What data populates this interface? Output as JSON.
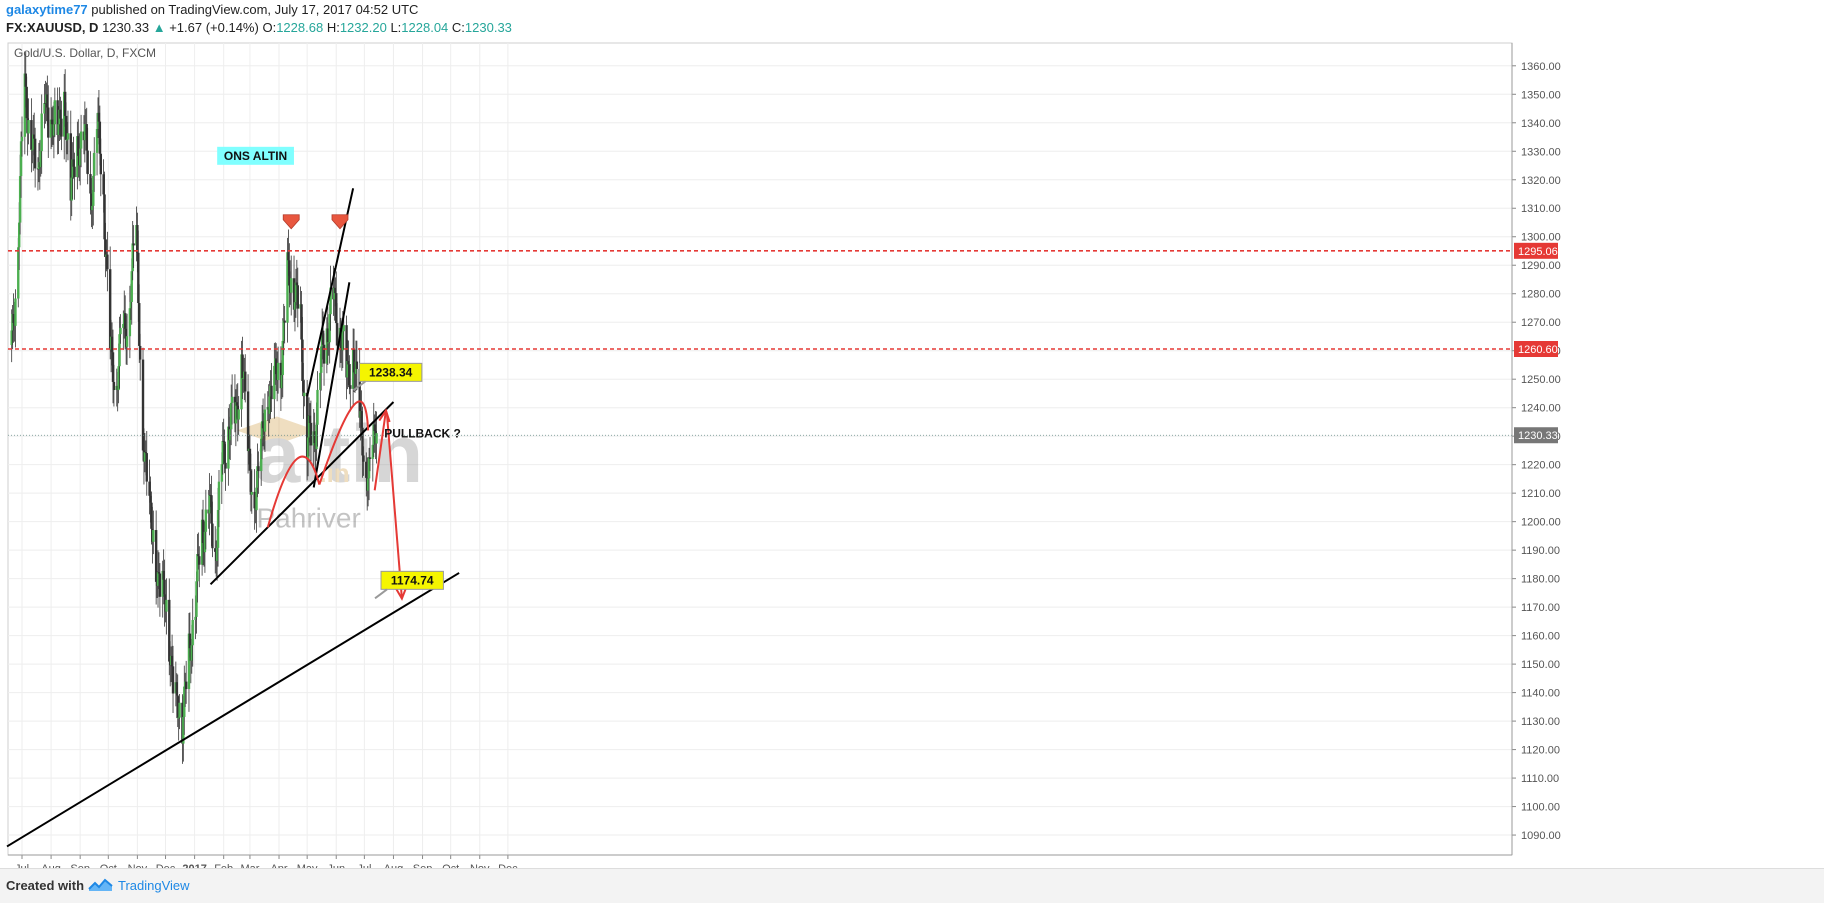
{
  "header": {
    "author": "galaxytime77",
    "published_text": "published on TradingView.com, July 17, 2017 04:52 UTC",
    "symbol": "FX:XAUUSD, D",
    "last": "1230.33",
    "change_arrow": "▲",
    "change": "+1.67 (+0.14%)",
    "o_label": "O:",
    "o_value": "1228.68",
    "h_label": "H:",
    "h_value": "1232.20",
    "l_label": "L:",
    "l_value": "1228.04",
    "c_label": "C:",
    "c_value": "1230.33"
  },
  "footer": {
    "created_with": "Created with",
    "brand": "TradingView",
    "brand_icon": "tradingview-logo-icon"
  },
  "colors": {
    "up": "#26a69a",
    "down": "#ef5350",
    "candle_up_body": "#4caf50",
    "candle_down_body": "#333333",
    "resistance": "#e53935",
    "trend": "#000000",
    "arrow": "#e53935",
    "label_yellow": "#f5f500",
    "label_cyan": "#80ffff"
  },
  "chart_data": {
    "type": "candlestick",
    "title": "Gold/U.S. Dollar, D, FXCM",
    "ylim": [
      1083,
      1368
    ],
    "y_ticks": [
      1090,
      1100,
      1110,
      1120,
      1130,
      1140,
      1150,
      1160,
      1170,
      1180,
      1190,
      1200,
      1210,
      1220,
      1230,
      1240,
      1250,
      1260,
      1270,
      1280,
      1290,
      1300,
      1310,
      1320,
      1330,
      1340,
      1350,
      1360
    ],
    "x_tick_labels": [
      "Jul",
      "Aug",
      "Sep",
      "Oct",
      "Nov",
      "Dec",
      "2017",
      "Feb",
      "Mar",
      "Apr",
      "May",
      "Jun",
      "Jul",
      "Aug",
      "Sep",
      "Oct",
      "Nov",
      "Dec"
    ],
    "price_labels": [
      {
        "value": 1295.06,
        "text": "1295.06",
        "color": "#e53935"
      },
      {
        "value": 1260.6,
        "text": "1260.60",
        "color": "#e53935"
      },
      {
        "value": 1230.33,
        "text": "1230.33",
        "color": "#777777"
      }
    ],
    "horizontal_levels": [
      1295.06,
      1260.6
    ],
    "close_series": [
      {
        "date": "2016-06-20",
        "close": 1262
      },
      {
        "date": "2016-06-27",
        "close": 1300
      },
      {
        "date": "2016-07-04",
        "close": 1355
      },
      {
        "date": "2016-07-11",
        "close": 1332
      },
      {
        "date": "2016-07-18",
        "close": 1322
      },
      {
        "date": "2016-07-25",
        "close": 1350
      },
      {
        "date": "2016-08-01",
        "close": 1336
      },
      {
        "date": "2016-08-08",
        "close": 1343
      },
      {
        "date": "2016-08-15",
        "close": 1342
      },
      {
        "date": "2016-08-22",
        "close": 1322
      },
      {
        "date": "2016-08-29",
        "close": 1327
      },
      {
        "date": "2016-09-05",
        "close": 1340
      },
      {
        "date": "2016-09-12",
        "close": 1312
      },
      {
        "date": "2016-09-19",
        "close": 1338
      },
      {
        "date": "2016-09-26",
        "close": 1317
      },
      {
        "date": "2016-10-03",
        "close": 1257
      },
      {
        "date": "2016-10-10",
        "close": 1251
      },
      {
        "date": "2016-10-17",
        "close": 1267
      },
      {
        "date": "2016-10-24",
        "close": 1276
      },
      {
        "date": "2016-10-31",
        "close": 1304
      },
      {
        "date": "2016-11-07",
        "close": 1225
      },
      {
        "date": "2016-11-14",
        "close": 1208
      },
      {
        "date": "2016-11-21",
        "close": 1182
      },
      {
        "date": "2016-11-28",
        "close": 1177
      },
      {
        "date": "2016-12-05",
        "close": 1159
      },
      {
        "date": "2016-12-12",
        "close": 1134
      },
      {
        "date": "2016-12-19",
        "close": 1132
      },
      {
        "date": "2016-12-26",
        "close": 1152
      },
      {
        "date": "2017-01-02",
        "close": 1173
      },
      {
        "date": "2017-01-09",
        "close": 1197
      },
      {
        "date": "2017-01-16",
        "close": 1204
      },
      {
        "date": "2017-01-23",
        "close": 1190
      },
      {
        "date": "2017-01-30",
        "close": 1219
      },
      {
        "date": "2017-02-06",
        "close": 1234
      },
      {
        "date": "2017-02-13",
        "close": 1235
      },
      {
        "date": "2017-02-20",
        "close": 1257
      },
      {
        "date": "2017-02-27",
        "close": 1227
      },
      {
        "date": "2017-03-06",
        "close": 1203
      },
      {
        "date": "2017-03-13",
        "close": 1229
      },
      {
        "date": "2017-03-20",
        "close": 1243
      },
      {
        "date": "2017-03-27",
        "close": 1249
      },
      {
        "date": "2017-04-03",
        "close": 1255
      },
      {
        "date": "2017-04-10",
        "close": 1285
      },
      {
        "date": "2017-04-17",
        "close": 1284
      },
      {
        "date": "2017-04-24",
        "close": 1268
      },
      {
        "date": "2017-05-01",
        "close": 1228
      },
      {
        "date": "2017-05-08",
        "close": 1228
      },
      {
        "date": "2017-05-15",
        "close": 1254
      },
      {
        "date": "2017-05-22",
        "close": 1267
      },
      {
        "date": "2017-05-29",
        "close": 1279
      },
      {
        "date": "2017-06-05",
        "close": 1266
      },
      {
        "date": "2017-06-12",
        "close": 1254
      },
      {
        "date": "2017-06-19",
        "close": 1256
      },
      {
        "date": "2017-06-26",
        "close": 1241
      },
      {
        "date": "2017-07-03",
        "close": 1212
      },
      {
        "date": "2017-07-10",
        "close": 1228
      },
      {
        "date": "2017-07-14",
        "close": 1230.33
      }
    ],
    "annotations": {
      "text_boxes": [
        {
          "text": "ONS ALTIN",
          "date": "2017-03-07",
          "price": 1327,
          "bg": "#80ffff"
        },
        {
          "text": "PULLBACK ?",
          "date": "2017-09-01",
          "price": 1229.5,
          "bg": "none"
        },
        {
          "text": "1238.34",
          "date": "2017-07-29",
          "price": 1251,
          "bg": "#f5f500"
        },
        {
          "text": "1174.74",
          "date": "2017-08-21",
          "price": 1178,
          "bg": "#f5f500"
        }
      ],
      "trend_lines": [
        {
          "from": {
            "date": "2016-06-15",
            "price": 1086
          },
          "to": {
            "date": "2017-10-10",
            "price": 1182
          }
        },
        {
          "from": {
            "date": "2017-01-18",
            "price": 1178
          },
          "to": {
            "date": "2017-08-01",
            "price": 1242
          }
        },
        {
          "from": {
            "date": "2017-05-01",
            "price": 1244
          },
          "to": {
            "date": "2017-06-19",
            "price": 1317
          }
        },
        {
          "from": {
            "date": "2017-05-08",
            "price": 1212
          },
          "to": {
            "date": "2017-06-15",
            "price": 1284
          }
        }
      ],
      "arcs": [
        {
          "from": {
            "date": "2017-03-20",
            "price": 1198
          },
          "peak": {
            "date": "2017-04-20",
            "price": 1222
          },
          "to": {
            "date": "2017-05-14",
            "price": 1213
          }
        },
        {
          "from": {
            "date": "2017-05-14",
            "price": 1213
          },
          "peak": {
            "date": "2017-06-20",
            "price": 1241
          },
          "to": {
            "date": "2017-07-05",
            "price": 1232
          }
        }
      ],
      "arrows": [
        {
          "points": [
            {
              "date": "2017-07-12",
              "price": 1211
            },
            {
              "date": "2017-07-24",
              "price": 1239
            }
          ]
        },
        {
          "points": [
            {
              "date": "2017-07-25",
              "price": 1238
            },
            {
              "date": "2017-08-10",
              "price": 1173
            }
          ]
        }
      ],
      "down_markers": [
        {
          "date": "2017-04-14",
          "price": 1300
        },
        {
          "date": "2017-06-05",
          "price": 1300
        }
      ]
    },
    "watermark": {
      "main": "altin",
      "suffix": ".in",
      "sub": "Pahriver"
    },
    "grid": true,
    "legend": "none"
  }
}
